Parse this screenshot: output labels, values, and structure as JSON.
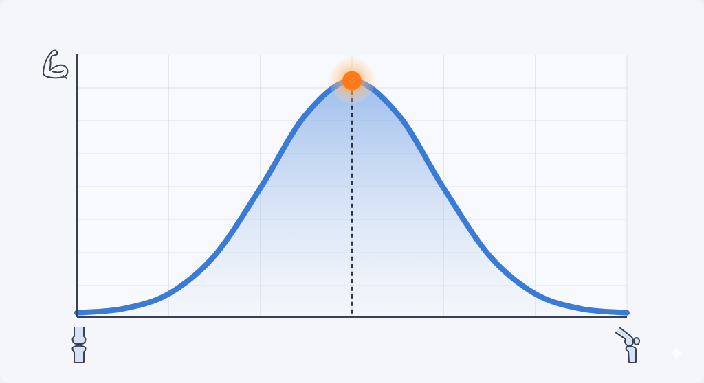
{
  "chart_data": {
    "type": "line",
    "title": "",
    "xlabel": "",
    "ylabel": "",
    "x": [
      0,
      0.5,
      1,
      1.5,
      2,
      2.5,
      3,
      3.5,
      4,
      4.5,
      5,
      5.5,
      6
    ],
    "series": [
      {
        "values": [
          0.004,
          0.021,
          0.085,
          0.249,
          0.539,
          0.857,
          1,
          0.857,
          0.539,
          0.249,
          0.085,
          0.021,
          0.004
        ]
      }
    ],
    "xlim": [
      0,
      6
    ],
    "ylim": [
      0,
      1.12
    ],
    "grid": true,
    "peak": {
      "x": 3,
      "y": 1
    },
    "fill_under_curve": true,
    "y_axis_icon": "flexed-bicep-icon",
    "x_axis_start_icon": "straight-knee-joint-icon",
    "x_axis_end_icon": "bent-knee-joint-icon",
    "colors": {
      "line": "#3a7bd5",
      "fill": "#8fb6ea",
      "peak": "#ff7a1a",
      "axis": "#3a4150",
      "grid": "#dde2ea"
    }
  }
}
